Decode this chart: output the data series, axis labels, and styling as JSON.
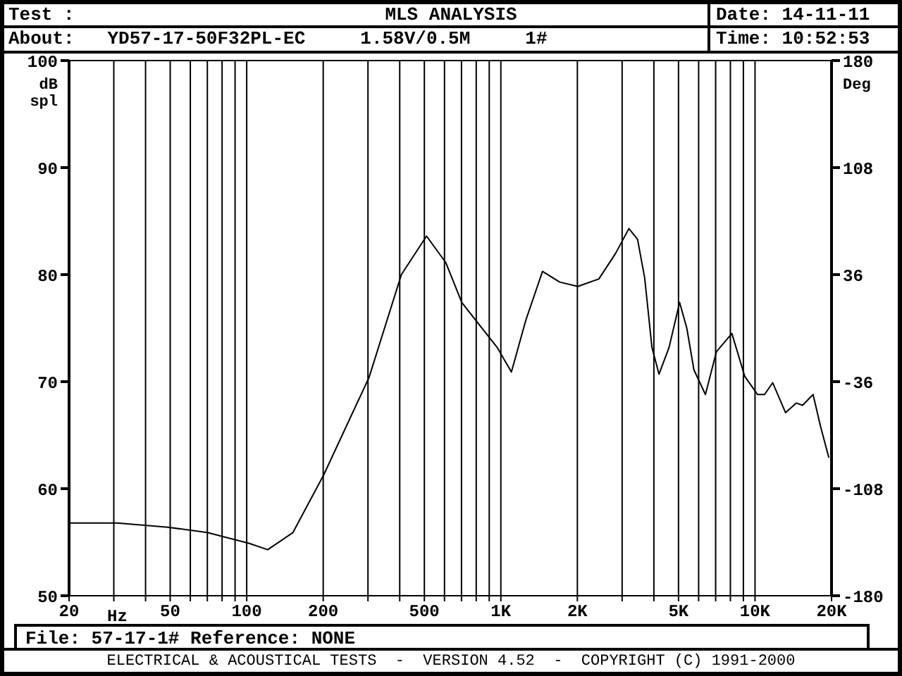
{
  "chart_data": {
    "type": "line",
    "title": "MLS ANALYSIS",
    "annotations": [
      "Test :",
      "About:   YD57-17-50F32PL-EC     1.58V/0.5M     1#",
      "Date: 14-11-11",
      "Time: 10:52:53",
      "File: 57-17-1# Reference: NONE",
      "ELECTRICAL & ACOUSTICAL TESTS  -  VERSION 4.52  -  COPYRIGHT (C) 1991-2000"
    ],
    "xlabel": "Hz",
    "ylabel": "dB spl",
    "y2label": "Deg",
    "log": "x",
    "grid": true,
    "xlim": [
      20,
      20000
    ],
    "xticks": [
      20,
      {
        "value": 30,
        "label": null
      },
      {
        "value": 40,
        "label": null
      },
      50,
      {
        "value": 60,
        "label": null
      },
      {
        "value": 70,
        "label": null
      },
      {
        "value": 80,
        "label": null
      },
      {
        "value": 90,
        "label": null
      },
      100,
      200,
      {
        "value": 300,
        "label": null
      },
      {
        "value": 400,
        "label": null
      },
      500,
      {
        "value": 600,
        "label": null
      },
      {
        "value": 700,
        "label": null
      },
      {
        "value": 800,
        "label": null
      },
      {
        "value": 900,
        "label": null
      },
      {
        "value": 1000,
        "label": "1K"
      },
      {
        "value": 2000,
        "label": "2K"
      },
      {
        "value": 3000,
        "label": null
      },
      {
        "value": 4000,
        "label": null
      },
      {
        "value": 5000,
        "label": "5K"
      },
      {
        "value": 6000,
        "label": null
      },
      {
        "value": 7000,
        "label": null
      },
      {
        "value": 8000,
        "label": null
      },
      {
        "value": 9000,
        "label": null
      },
      {
        "value": 10000,
        "label": "10K"
      },
      {
        "value": 20000,
        "label": "20K"
      }
    ],
    "ylim": [
      50,
      100
    ],
    "yticks": [
      50,
      60,
      70,
      80,
      90,
      100
    ],
    "y2lim": [
      -180,
      180
    ],
    "y2ticks": [
      -180,
      -108,
      -36,
      36,
      108,
      180
    ],
    "series": [
      {
        "color": "#000000",
        "x": [
          20,
          31,
          49,
          70,
          102,
          121,
          152,
          201,
          303,
          406,
          510,
          608,
          702,
          817,
          967,
          1100,
          1256,
          1458,
          1705,
          2009,
          2430,
          2830,
          3190,
          3450,
          3680,
          3930,
          4190,
          4590,
          5050,
          5390,
          5750,
          6380,
          7050,
          8110,
          9110,
          10230,
          10900,
          11740,
          13190,
          14520,
          15390,
          16920,
          18110,
          19520
        ],
        "values": [
          56.8,
          56.8,
          56.4,
          55.9,
          54.9,
          54.3,
          55.9,
          61.3,
          70.4,
          80.0,
          83.6,
          81.1,
          77.4,
          75.4,
          73.2,
          70.9,
          75.8,
          80.3,
          79.3,
          78.9,
          79.6,
          82.0,
          84.3,
          83.3,
          79.7,
          73.2,
          70.7,
          73.2,
          77.4,
          75.0,
          71.1,
          68.8,
          72.8,
          74.5,
          70.5,
          68.8,
          68.8,
          69.9,
          67.1,
          68.0,
          67.8,
          68.8,
          65.8,
          62.9
        ]
      }
    ]
  }
}
